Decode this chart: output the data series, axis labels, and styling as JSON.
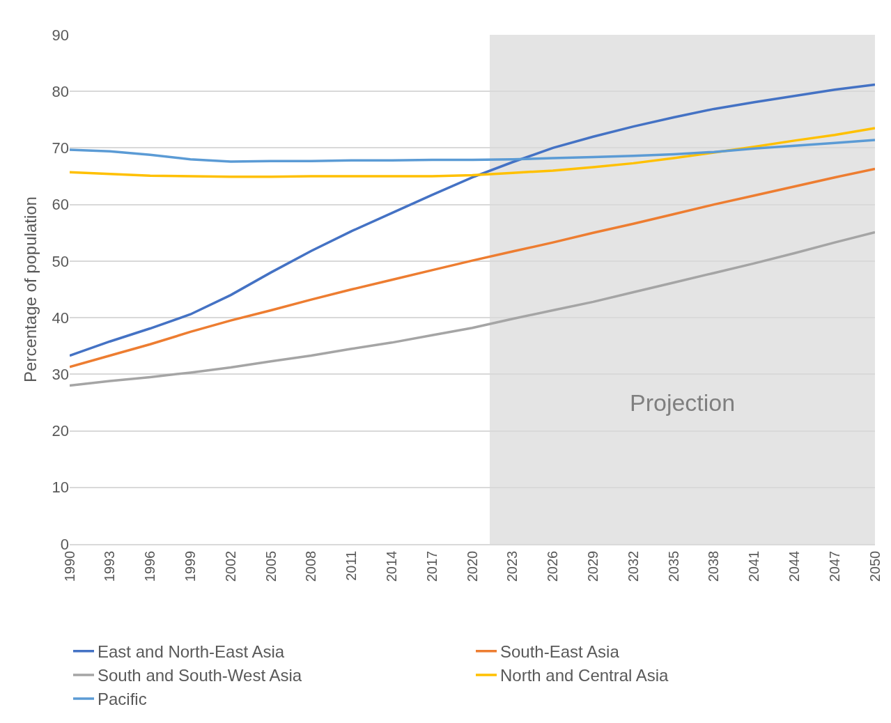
{
  "chart_data": {
    "type": "line",
    "ylabel": "Percentage of population",
    "x": [
      1990,
      1993,
      1996,
      1999,
      2002,
      2005,
      2008,
      2011,
      2014,
      2017,
      2020,
      2023,
      2026,
      2029,
      2032,
      2035,
      2038,
      2041,
      2044,
      2047,
      2050
    ],
    "series": [
      {
        "name": "East and North-East Asia",
        "color": "#4472c4",
        "values": [
          33.3,
          35.8,
          38.1,
          40.6,
          44,
          48,
          51.8,
          55.3,
          58.5,
          61.7,
          64.8,
          67.5,
          70,
          72,
          73.8,
          75.4,
          76.9,
          78.1,
          79.2,
          80.3,
          81.2
        ]
      },
      {
        "name": "South-East Asia",
        "color": "#ed7d31",
        "values": [
          31.3,
          33.3,
          35.3,
          37.5,
          39.5,
          41.3,
          43.2,
          45,
          46.7,
          48.4,
          50.1,
          51.7,
          53.3,
          55,
          56.6,
          58.3,
          60,
          61.6,
          63.2,
          64.8,
          66.3
        ]
      },
      {
        "name": "South and South-West Asia",
        "color": "#a5a5a5",
        "values": [
          28,
          28.8,
          29.5,
          30.3,
          31.2,
          32.3,
          33.3,
          34.5,
          35.6,
          36.9,
          38.2,
          39.8,
          41.3,
          42.8,
          44.5,
          46.2,
          47.9,
          49.6,
          51.4,
          53.3,
          55.1
        ]
      },
      {
        "name": "North and Central Asia",
        "color": "#ffc000",
        "values": [
          65.7,
          65.4,
          65.1,
          65,
          64.9,
          64.9,
          65,
          65,
          65,
          65,
          65.2,
          65.6,
          66,
          66.6,
          67.3,
          68.2,
          69.2,
          70.2,
          71.3,
          72.3,
          73.5
        ]
      },
      {
        "name": "Pacific",
        "color": "#5b9bd5",
        "values": [
          69.7,
          69.4,
          68.8,
          68,
          67.6,
          67.7,
          67.7,
          67.8,
          67.8,
          67.9,
          67.9,
          68,
          68.2,
          68.4,
          68.6,
          68.9,
          69.3,
          69.9,
          70.4,
          70.9,
          71.4
        ]
      }
    ],
    "xlim": [
      1990,
      2050
    ],
    "xticks": [
      1990,
      1993,
      1996,
      1999,
      2002,
      2005,
      2008,
      2011,
      2014,
      2017,
      2020,
      2023,
      2026,
      2029,
      2032,
      2035,
      2038,
      2041,
      2044,
      2047,
      2050
    ],
    "ylim": [
      0,
      90
    ],
    "yticks": [
      0,
      10,
      20,
      30,
      40,
      50,
      60,
      70,
      80,
      90
    ],
    "bands": [
      {
        "axis": "x",
        "from": 2021.3,
        "to": 2050,
        "label": "Projection",
        "color": "#e4e4e4"
      }
    ],
    "grid": "y",
    "legend": "bottom",
    "marker": "none",
    "line_style": "solid"
  }
}
